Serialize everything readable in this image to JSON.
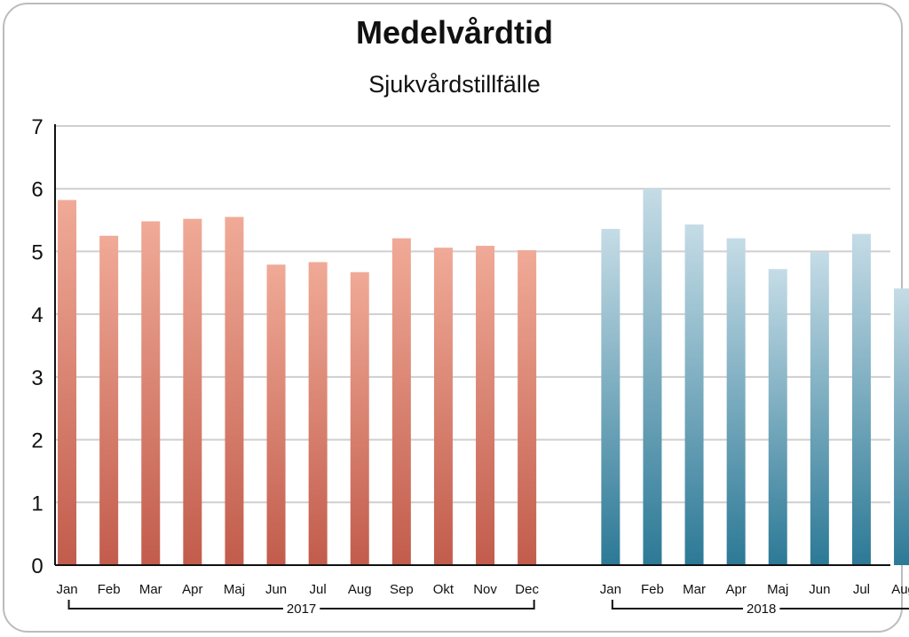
{
  "chart_data": {
    "type": "bar",
    "title": "Medelvårdtid",
    "subtitle": "Sjukvårdstillfälle",
    "ylim": [
      0,
      7
    ],
    "yticks": [
      0,
      1,
      2,
      3,
      4,
      5,
      6,
      7
    ],
    "grid": true,
    "groups": [
      {
        "label": "2017",
        "color_top": "#f0aa97",
        "color_bottom": "#c25c4c",
        "categories": [
          "Jan",
          "Feb",
          "Mar",
          "Apr",
          "Maj",
          "Jun",
          "Jul",
          "Aug",
          "Sep",
          "Okt",
          "Nov",
          "Dec"
        ],
        "values": [
          5.82,
          5.25,
          5.48,
          5.52,
          5.55,
          4.79,
          4.83,
          4.67,
          5.21,
          5.06,
          5.09,
          5.02
        ]
      },
      {
        "label": "2018",
        "color_top": "#c5dce6",
        "color_bottom": "#2c7996",
        "categories": [
          "Jan",
          "Feb",
          "Mar",
          "Apr",
          "Maj",
          "Jun",
          "Jul",
          "Aug"
        ],
        "values": [
          5.36,
          6.0,
          5.43,
          5.21,
          4.72,
          4.99,
          5.28,
          4.41
        ]
      }
    ]
  }
}
